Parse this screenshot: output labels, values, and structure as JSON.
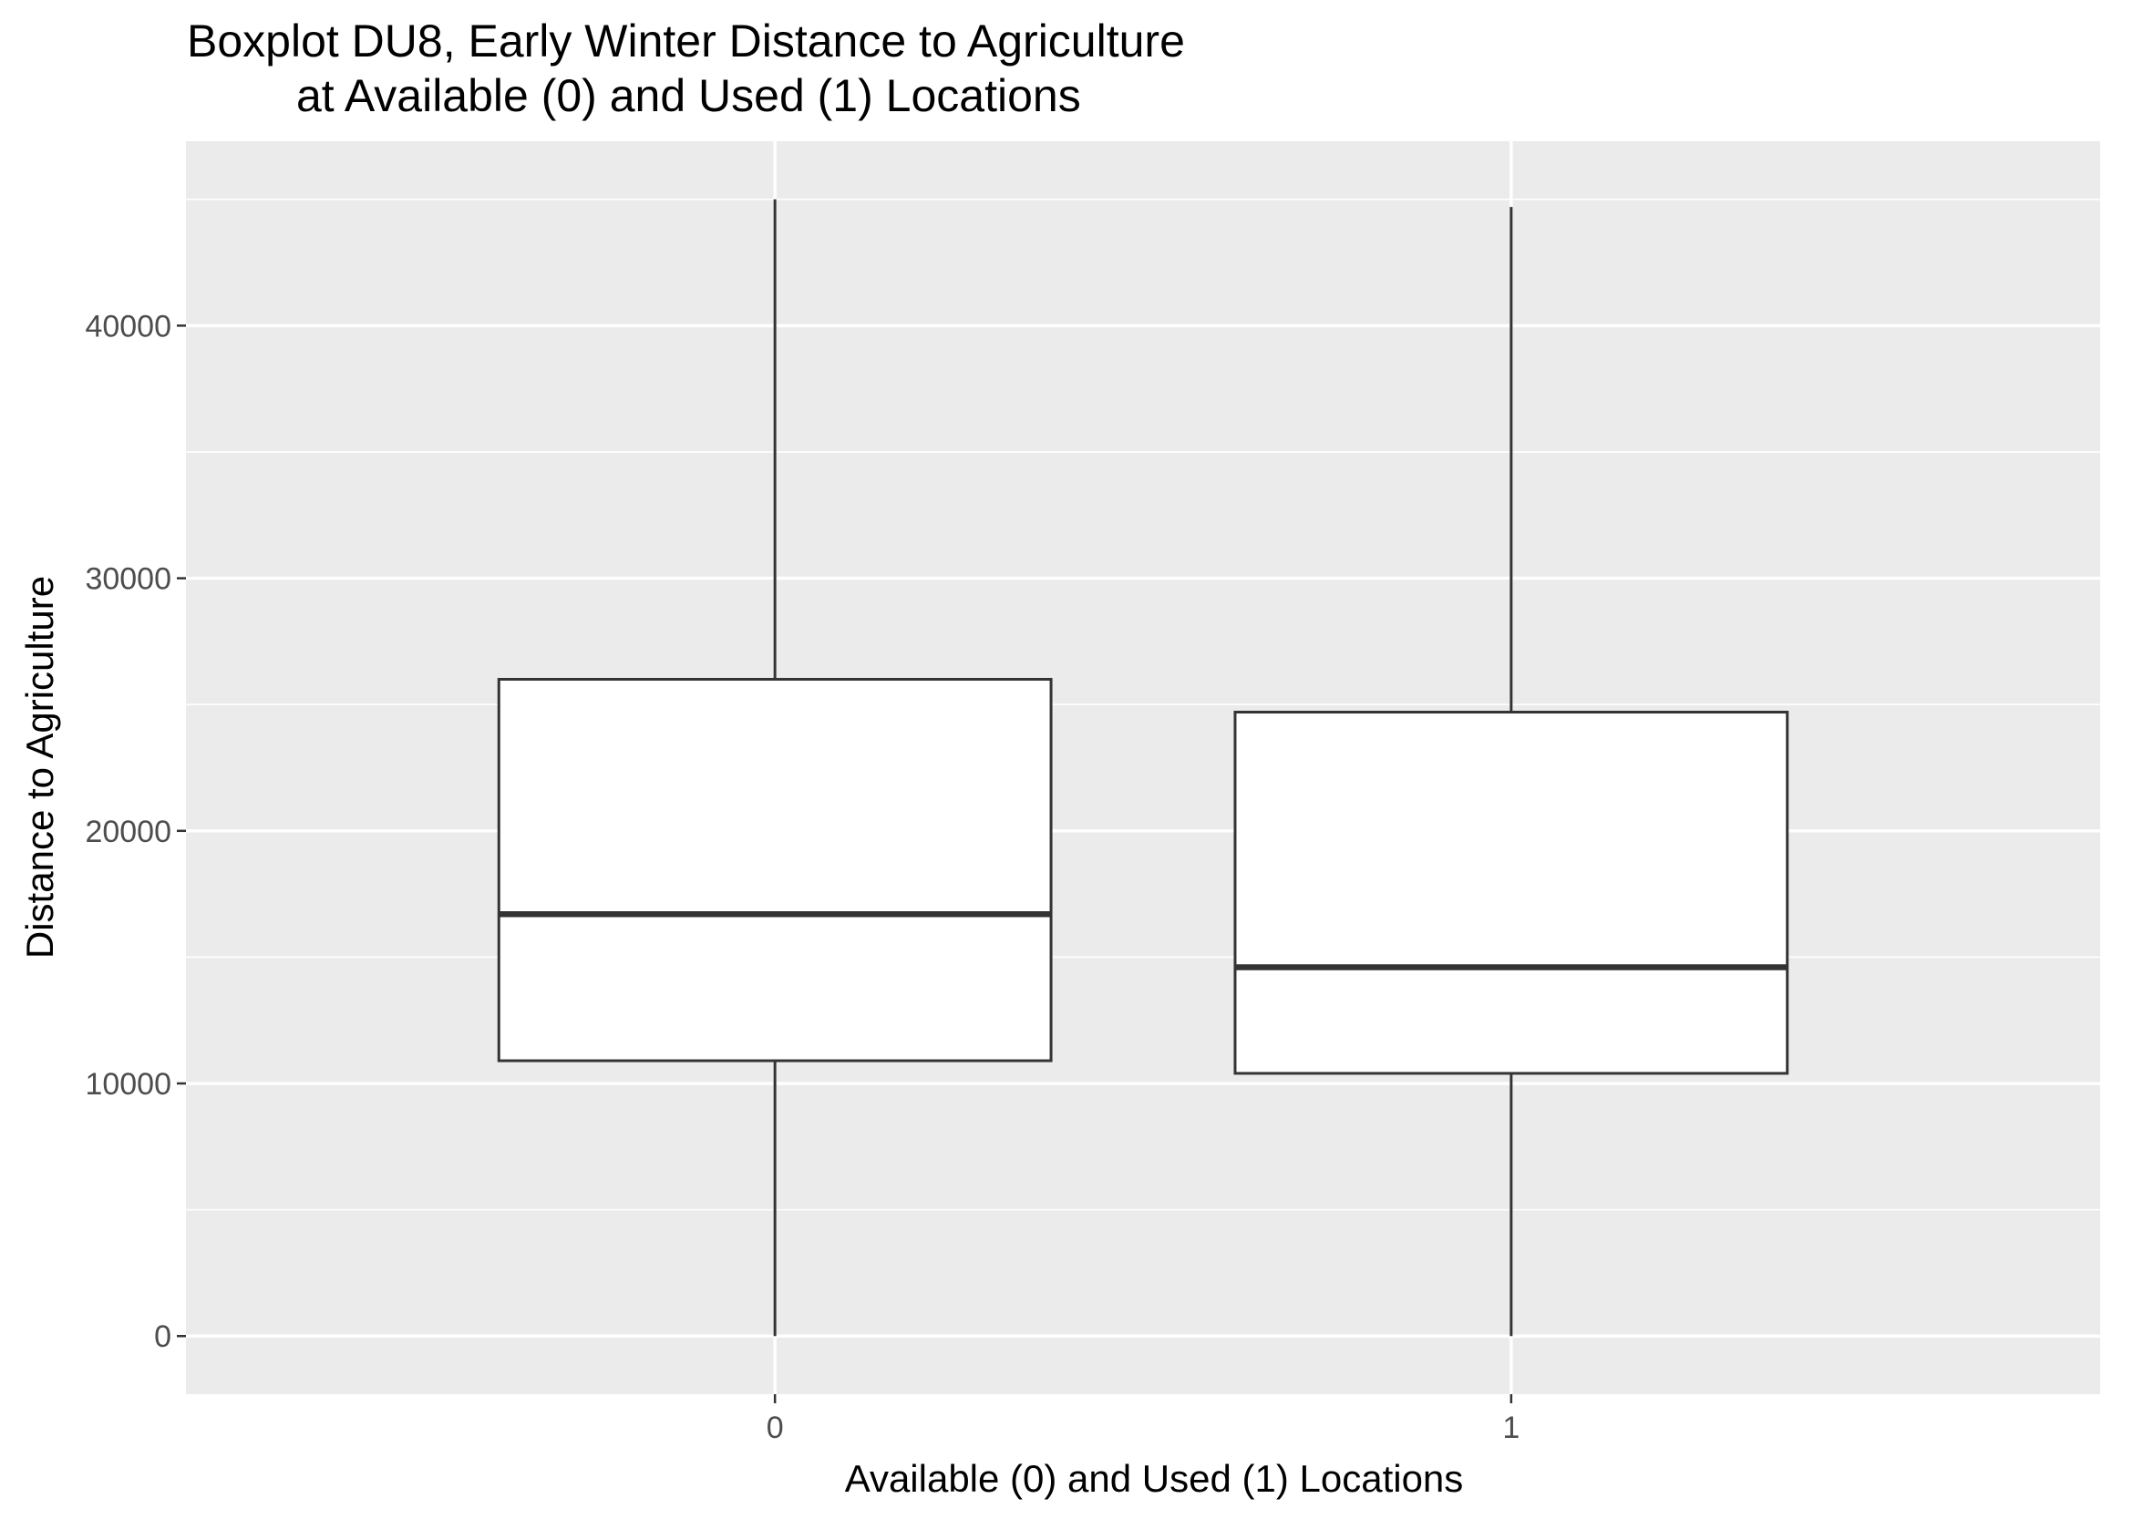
{
  "chart_data": {
    "type": "boxplot",
    "title": "Boxplot DU8, Early Winter Distance to Agriculture",
    "subtitle": "at Available (0) and Used (1) Locations",
    "xlabel": "Available (0) and Used (1) Locations",
    "ylabel": "Distance to Agriculture",
    "categories": [
      "0",
      "1"
    ],
    "boxes": [
      {
        "category": "0",
        "min": 0,
        "q1": 10900,
        "median": 16700,
        "q3": 26000,
        "max": 45000
      },
      {
        "category": "1",
        "min": 0,
        "q1": 10400,
        "median": 14600,
        "q3": 24700,
        "max": 44700
      }
    ],
    "ylim": [
      -2300,
      47300
    ],
    "yticks": [
      0,
      10000,
      20000,
      30000,
      40000
    ],
    "ytick_labels": [
      "0",
      "10000",
      "20000",
      "30000",
      "40000"
    ],
    "grid": true,
    "colors": {
      "panel_background": "#ebebeb",
      "grid": "#ffffff",
      "box_fill": "#ffffff",
      "box_stroke": "#333333",
      "tick_label": "#4d4d4d",
      "tick_mark": "#333333"
    }
  }
}
